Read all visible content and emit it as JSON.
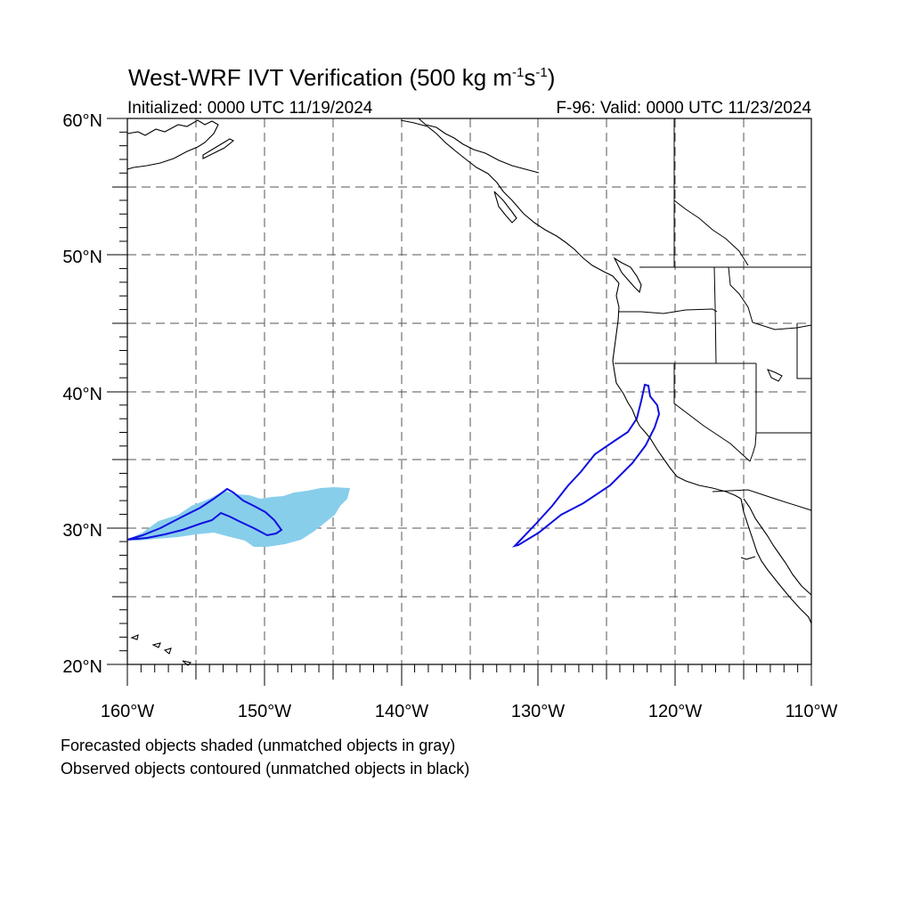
{
  "title": {
    "main": "West-WRF IVT Verification (500 kg m",
    "sup1": "-1",
    "mid": "s",
    "sup2": "-1",
    "end": ")"
  },
  "initialized": "Initialized: 0000 UTC 11/19/2024",
  "valid": "F-96: Valid: 0000 UTC 11/23/2024",
  "notes": [
    "Forecasted objects shaded (unmatched objects in gray)",
    "Observed objects contoured (unmatched objects in black)"
  ],
  "map": {
    "lon_range": [
      -160,
      -110
    ],
    "lat_range": [
      20,
      60
    ],
    "lat_labels": [
      "20°N",
      "30°N",
      "40°N",
      "50°N",
      "60°N"
    ],
    "lon_labels": [
      "160°W",
      "150°W",
      "140°W",
      "130°W",
      "120°W",
      "110°W"
    ],
    "colors": {
      "forecast_fill": "#87ceeb",
      "observed_contour": "#1010e0",
      "coast": "#000000",
      "grid": "#555555"
    }
  }
}
